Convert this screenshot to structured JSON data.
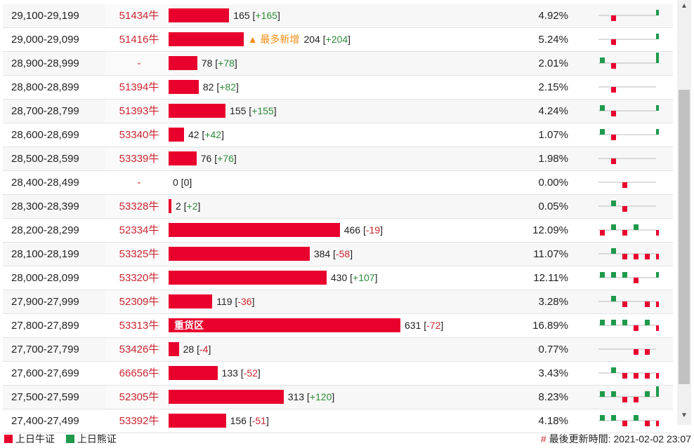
{
  "rows": [
    {
      "range": "29,100-29,199",
      "code": "51434牛",
      "count": "165",
      "change": "+165",
      "pct": "4.92%",
      "bar": 165,
      "spark": [
        0,
        -1,
        0,
        0,
        0,
        1
      ]
    },
    {
      "range": "29,000-29,099",
      "code": "51416牛",
      "note": "▲ 最多新增",
      "count": "204",
      "change": "+204",
      "pct": "5.24%",
      "bar": 204,
      "spark": [
        0,
        -1,
        0,
        0,
        0,
        1
      ]
    },
    {
      "range": "28,900-28,999",
      "code": "-",
      "count": "78",
      "change": "+78",
      "pct": "2.01%",
      "bar": 78,
      "spark": [
        1,
        -1,
        0,
        0,
        0,
        2
      ]
    },
    {
      "range": "28,800-28,899",
      "code": "51394牛",
      "count": "82",
      "change": "+82",
      "pct": "2.15%",
      "bar": 82,
      "spark": [
        0,
        -1,
        0,
        0,
        0,
        0
      ]
    },
    {
      "range": "28,700-28,799",
      "code": "51393牛",
      "count": "155",
      "change": "+155",
      "pct": "4.24%",
      "bar": 155,
      "spark": [
        1,
        -1,
        0,
        0,
        0,
        1
      ]
    },
    {
      "range": "28,600-28,699",
      "code": "53340牛",
      "count": "42",
      "change": "+42",
      "pct": "1.07%",
      "bar": 42,
      "spark": [
        1,
        -1,
        0,
        0,
        0,
        1
      ]
    },
    {
      "range": "28,500-28,599",
      "code": "53339牛",
      "count": "76",
      "change": "+76",
      "pct": "1.98%",
      "bar": 76,
      "spark": [
        0,
        -1,
        0,
        0,
        0,
        0
      ]
    },
    {
      "range": "28,400-28,499",
      "code": "-",
      "count": "0",
      "change": "0",
      "pct": "0.00%",
      "bar": 0,
      "spark": [
        0,
        0,
        -1,
        0,
        0,
        0
      ]
    },
    {
      "range": "28,300-28,399",
      "code": "53328牛",
      "count": "2",
      "change": "+2",
      "pct": "0.05%",
      "bar": 2,
      "spark": [
        0,
        1,
        -1,
        0,
        0,
        0
      ]
    },
    {
      "range": "28,200-28,299",
      "code": "52334牛",
      "count": "466",
      "change": "-19",
      "pct": "12.09%",
      "bar": 466,
      "spark": [
        -1,
        1,
        -1,
        1,
        0,
        -1
      ]
    },
    {
      "range": "28,100-28,199",
      "code": "53325牛",
      "count": "384",
      "change": "-58",
      "pct": "11.07%",
      "bar": 384,
      "spark": [
        0,
        1,
        -1,
        -1,
        -1,
        -1
      ]
    },
    {
      "range": "28,000-28,099",
      "code": "53320牛",
      "count": "430",
      "change": "+107",
      "pct": "12.11%",
      "bar": 430,
      "spark": [
        1,
        1,
        1,
        -1,
        0,
        1
      ]
    },
    {
      "range": "27,900-27,999",
      "code": "52309牛",
      "count": "119",
      "change": "-36",
      "pct": "3.28%",
      "bar": 119,
      "spark": [
        0,
        1,
        -1,
        0,
        -1,
        -1
      ]
    },
    {
      "range": "27,800-27,899",
      "code": "53313牛",
      "label": "重货区",
      "count": "631",
      "change": "-72",
      "pct": "16.89%",
      "bar": 631,
      "spark": [
        1,
        1,
        1,
        -1,
        1,
        -1
      ]
    },
    {
      "range": "27,700-27,799",
      "code": "53426牛",
      "count": "28",
      "change": "-4",
      "pct": "0.77%",
      "bar": 28,
      "spark": [
        0,
        0,
        0,
        -1,
        -1,
        0
      ]
    },
    {
      "range": "27,600-27,699",
      "code": "66656牛",
      "count": "133",
      "change": "-52",
      "pct": "3.43%",
      "bar": 133,
      "spark": [
        0,
        1,
        -1,
        -1,
        -1,
        -1
      ]
    },
    {
      "range": "27,500-27,599",
      "code": "52305牛",
      "count": "313",
      "change": "+120",
      "pct": "8.23%",
      "bar": 313,
      "spark": [
        1,
        1,
        -1,
        -1,
        1,
        2
      ]
    },
    {
      "range": "27,400-27,499",
      "code": "53392牛",
      "count": "156",
      "change": "-51",
      "pct": "4.18%",
      "bar": 156,
      "spark": [
        1,
        1,
        -1,
        1,
        -1,
        -1
      ]
    }
  ],
  "legend": {
    "bull": "上日牛证",
    "bear": "上日熊证"
  },
  "colors": {
    "bull": "#e8012d",
    "bear": "#1e9a4a"
  },
  "updated": {
    "hash": "#",
    "text": "最後更新時間: 2021-02-02 23:07"
  },
  "scroll": {
    "up": "▲",
    "down": "▼"
  }
}
